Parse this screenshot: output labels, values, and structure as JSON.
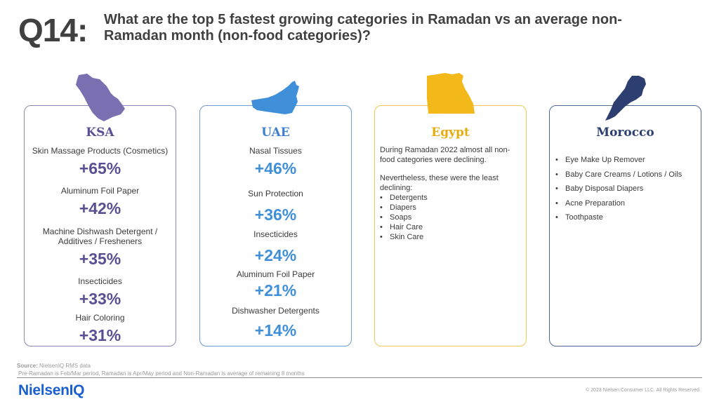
{
  "header": {
    "question_number": "Q14:",
    "question_text": "What are the top 5 fastest growing categories in Ramadan vs an average non-Ramadan month (non-food categories)?"
  },
  "cards": {
    "ksa": {
      "title": "KSA",
      "items": [
        {
          "label": "Skin Massage Products (Cosmetics)",
          "value": "+65%"
        },
        {
          "label": "Aluminum Foil Paper",
          "value": "+42%"
        },
        {
          "label": "Machine Dishwash Detergent / Additives / Fresheners",
          "value": "+35%"
        },
        {
          "label": "Insecticides",
          "value": "+33%"
        },
        {
          "label": "Hair Coloring",
          "value": "+31%"
        }
      ]
    },
    "uae": {
      "title": "UAE",
      "items": [
        {
          "label": "Nasal Tissues",
          "value": "+46%"
        },
        {
          "label": "Sun Protection",
          "value": "+36%"
        },
        {
          "label": "Insecticides",
          "value": "+24%"
        },
        {
          "label": "Aluminum Foil Paper",
          "value": "+21%"
        },
        {
          "label": "Dishwasher Detergents",
          "value": "+14%"
        }
      ]
    },
    "egypt": {
      "title": "Egypt",
      "intro": "During Ramadan 2022 almost all non-food categories were declining.",
      "lead": "Nevertheless, these were the least declining:",
      "items": [
        "Detergents",
        "Diapers",
        "Soaps",
        "Hair Care",
        "Skin Care"
      ]
    },
    "morocco": {
      "title": "Morocco",
      "items": [
        "Eye Make Up Remover",
        "Baby Care Creams / Lotions / Oils",
        "Baby Disposal Diapers",
        "Acne Preparation",
        "Toothpaste"
      ]
    }
  },
  "colors": {
    "ksa": "#7a6fb0",
    "uae": "#3f8fd9",
    "egypt": "#f3b81a",
    "morocco": "#2c3f70",
    "brand": "#1a5fd0"
  },
  "icons": {
    "ksa": "saudi-arabia-map-icon",
    "uae": "uae-map-icon",
    "egypt": "egypt-map-icon",
    "morocco": "morocco-map-icon"
  },
  "footer": {
    "source_label": "Source:",
    "source_text": " NielsenIQ RMS data",
    "note": "Pre-Ramadan  is Feb/Mar period, Ramadan is Apr/May period and Non-Ramadan  is average of remaining  8 months",
    "logo": "NielsenIQ",
    "copyright": "© 2023 Nielsen Consumer LLC. All Rights Reserved."
  }
}
